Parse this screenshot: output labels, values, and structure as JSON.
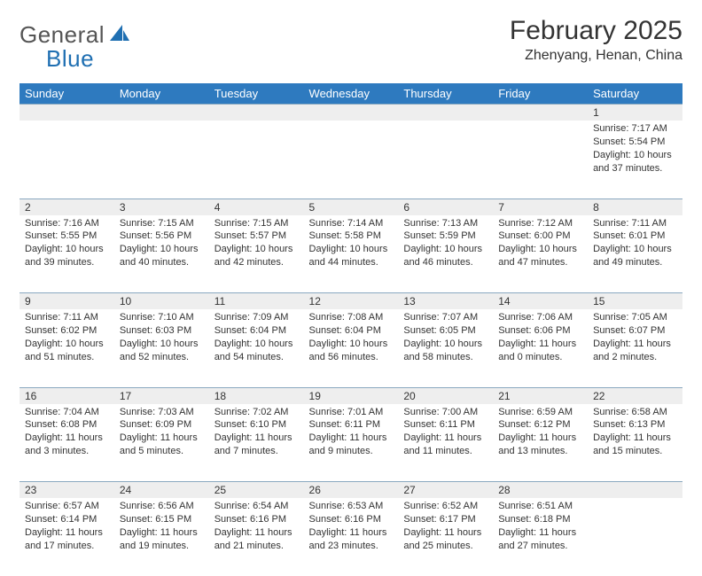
{
  "logo": {
    "word1": "General",
    "word2": "Blue"
  },
  "title": "February 2025",
  "location": "Zhenyang, Henan, China",
  "colors": {
    "header_blue": "#2e7abf",
    "row_gray": "#eeeeee",
    "rule_blue": "#8aa8c0",
    "logo_blue": "#1f6fb2",
    "text": "#333333",
    "bg": "#ffffff"
  },
  "day_headers": [
    "Sunday",
    "Monday",
    "Tuesday",
    "Wednesday",
    "Thursday",
    "Friday",
    "Saturday"
  ],
  "weeks": [
    [
      {
        "n": "",
        "sr": "",
        "ss": "",
        "dl": ""
      },
      {
        "n": "",
        "sr": "",
        "ss": "",
        "dl": ""
      },
      {
        "n": "",
        "sr": "",
        "ss": "",
        "dl": ""
      },
      {
        "n": "",
        "sr": "",
        "ss": "",
        "dl": ""
      },
      {
        "n": "",
        "sr": "",
        "ss": "",
        "dl": ""
      },
      {
        "n": "",
        "sr": "",
        "ss": "",
        "dl": ""
      },
      {
        "n": "1",
        "sr": "Sunrise: 7:17 AM",
        "ss": "Sunset: 5:54 PM",
        "dl": "Daylight: 10 hours and 37 minutes."
      }
    ],
    [
      {
        "n": "2",
        "sr": "Sunrise: 7:16 AM",
        "ss": "Sunset: 5:55 PM",
        "dl": "Daylight: 10 hours and 39 minutes."
      },
      {
        "n": "3",
        "sr": "Sunrise: 7:15 AM",
        "ss": "Sunset: 5:56 PM",
        "dl": "Daylight: 10 hours and 40 minutes."
      },
      {
        "n": "4",
        "sr": "Sunrise: 7:15 AM",
        "ss": "Sunset: 5:57 PM",
        "dl": "Daylight: 10 hours and 42 minutes."
      },
      {
        "n": "5",
        "sr": "Sunrise: 7:14 AM",
        "ss": "Sunset: 5:58 PM",
        "dl": "Daylight: 10 hours and 44 minutes."
      },
      {
        "n": "6",
        "sr": "Sunrise: 7:13 AM",
        "ss": "Sunset: 5:59 PM",
        "dl": "Daylight: 10 hours and 46 minutes."
      },
      {
        "n": "7",
        "sr": "Sunrise: 7:12 AM",
        "ss": "Sunset: 6:00 PM",
        "dl": "Daylight: 10 hours and 47 minutes."
      },
      {
        "n": "8",
        "sr": "Sunrise: 7:11 AM",
        "ss": "Sunset: 6:01 PM",
        "dl": "Daylight: 10 hours and 49 minutes."
      }
    ],
    [
      {
        "n": "9",
        "sr": "Sunrise: 7:11 AM",
        "ss": "Sunset: 6:02 PM",
        "dl": "Daylight: 10 hours and 51 minutes."
      },
      {
        "n": "10",
        "sr": "Sunrise: 7:10 AM",
        "ss": "Sunset: 6:03 PM",
        "dl": "Daylight: 10 hours and 52 minutes."
      },
      {
        "n": "11",
        "sr": "Sunrise: 7:09 AM",
        "ss": "Sunset: 6:04 PM",
        "dl": "Daylight: 10 hours and 54 minutes."
      },
      {
        "n": "12",
        "sr": "Sunrise: 7:08 AM",
        "ss": "Sunset: 6:04 PM",
        "dl": "Daylight: 10 hours and 56 minutes."
      },
      {
        "n": "13",
        "sr": "Sunrise: 7:07 AM",
        "ss": "Sunset: 6:05 PM",
        "dl": "Daylight: 10 hours and 58 minutes."
      },
      {
        "n": "14",
        "sr": "Sunrise: 7:06 AM",
        "ss": "Sunset: 6:06 PM",
        "dl": "Daylight: 11 hours and 0 minutes."
      },
      {
        "n": "15",
        "sr": "Sunrise: 7:05 AM",
        "ss": "Sunset: 6:07 PM",
        "dl": "Daylight: 11 hours and 2 minutes."
      }
    ],
    [
      {
        "n": "16",
        "sr": "Sunrise: 7:04 AM",
        "ss": "Sunset: 6:08 PM",
        "dl": "Daylight: 11 hours and 3 minutes."
      },
      {
        "n": "17",
        "sr": "Sunrise: 7:03 AM",
        "ss": "Sunset: 6:09 PM",
        "dl": "Daylight: 11 hours and 5 minutes."
      },
      {
        "n": "18",
        "sr": "Sunrise: 7:02 AM",
        "ss": "Sunset: 6:10 PM",
        "dl": "Daylight: 11 hours and 7 minutes."
      },
      {
        "n": "19",
        "sr": "Sunrise: 7:01 AM",
        "ss": "Sunset: 6:11 PM",
        "dl": "Daylight: 11 hours and 9 minutes."
      },
      {
        "n": "20",
        "sr": "Sunrise: 7:00 AM",
        "ss": "Sunset: 6:11 PM",
        "dl": "Daylight: 11 hours and 11 minutes."
      },
      {
        "n": "21",
        "sr": "Sunrise: 6:59 AM",
        "ss": "Sunset: 6:12 PM",
        "dl": "Daylight: 11 hours and 13 minutes."
      },
      {
        "n": "22",
        "sr": "Sunrise: 6:58 AM",
        "ss": "Sunset: 6:13 PM",
        "dl": "Daylight: 11 hours and 15 minutes."
      }
    ],
    [
      {
        "n": "23",
        "sr": "Sunrise: 6:57 AM",
        "ss": "Sunset: 6:14 PM",
        "dl": "Daylight: 11 hours and 17 minutes."
      },
      {
        "n": "24",
        "sr": "Sunrise: 6:56 AM",
        "ss": "Sunset: 6:15 PM",
        "dl": "Daylight: 11 hours and 19 minutes."
      },
      {
        "n": "25",
        "sr": "Sunrise: 6:54 AM",
        "ss": "Sunset: 6:16 PM",
        "dl": "Daylight: 11 hours and 21 minutes."
      },
      {
        "n": "26",
        "sr": "Sunrise: 6:53 AM",
        "ss": "Sunset: 6:16 PM",
        "dl": "Daylight: 11 hours and 23 minutes."
      },
      {
        "n": "27",
        "sr": "Sunrise: 6:52 AM",
        "ss": "Sunset: 6:17 PM",
        "dl": "Daylight: 11 hours and 25 minutes."
      },
      {
        "n": "28",
        "sr": "Sunrise: 6:51 AM",
        "ss": "Sunset: 6:18 PM",
        "dl": "Daylight: 11 hours and 27 minutes."
      },
      {
        "n": "",
        "sr": "",
        "ss": "",
        "dl": ""
      }
    ]
  ]
}
